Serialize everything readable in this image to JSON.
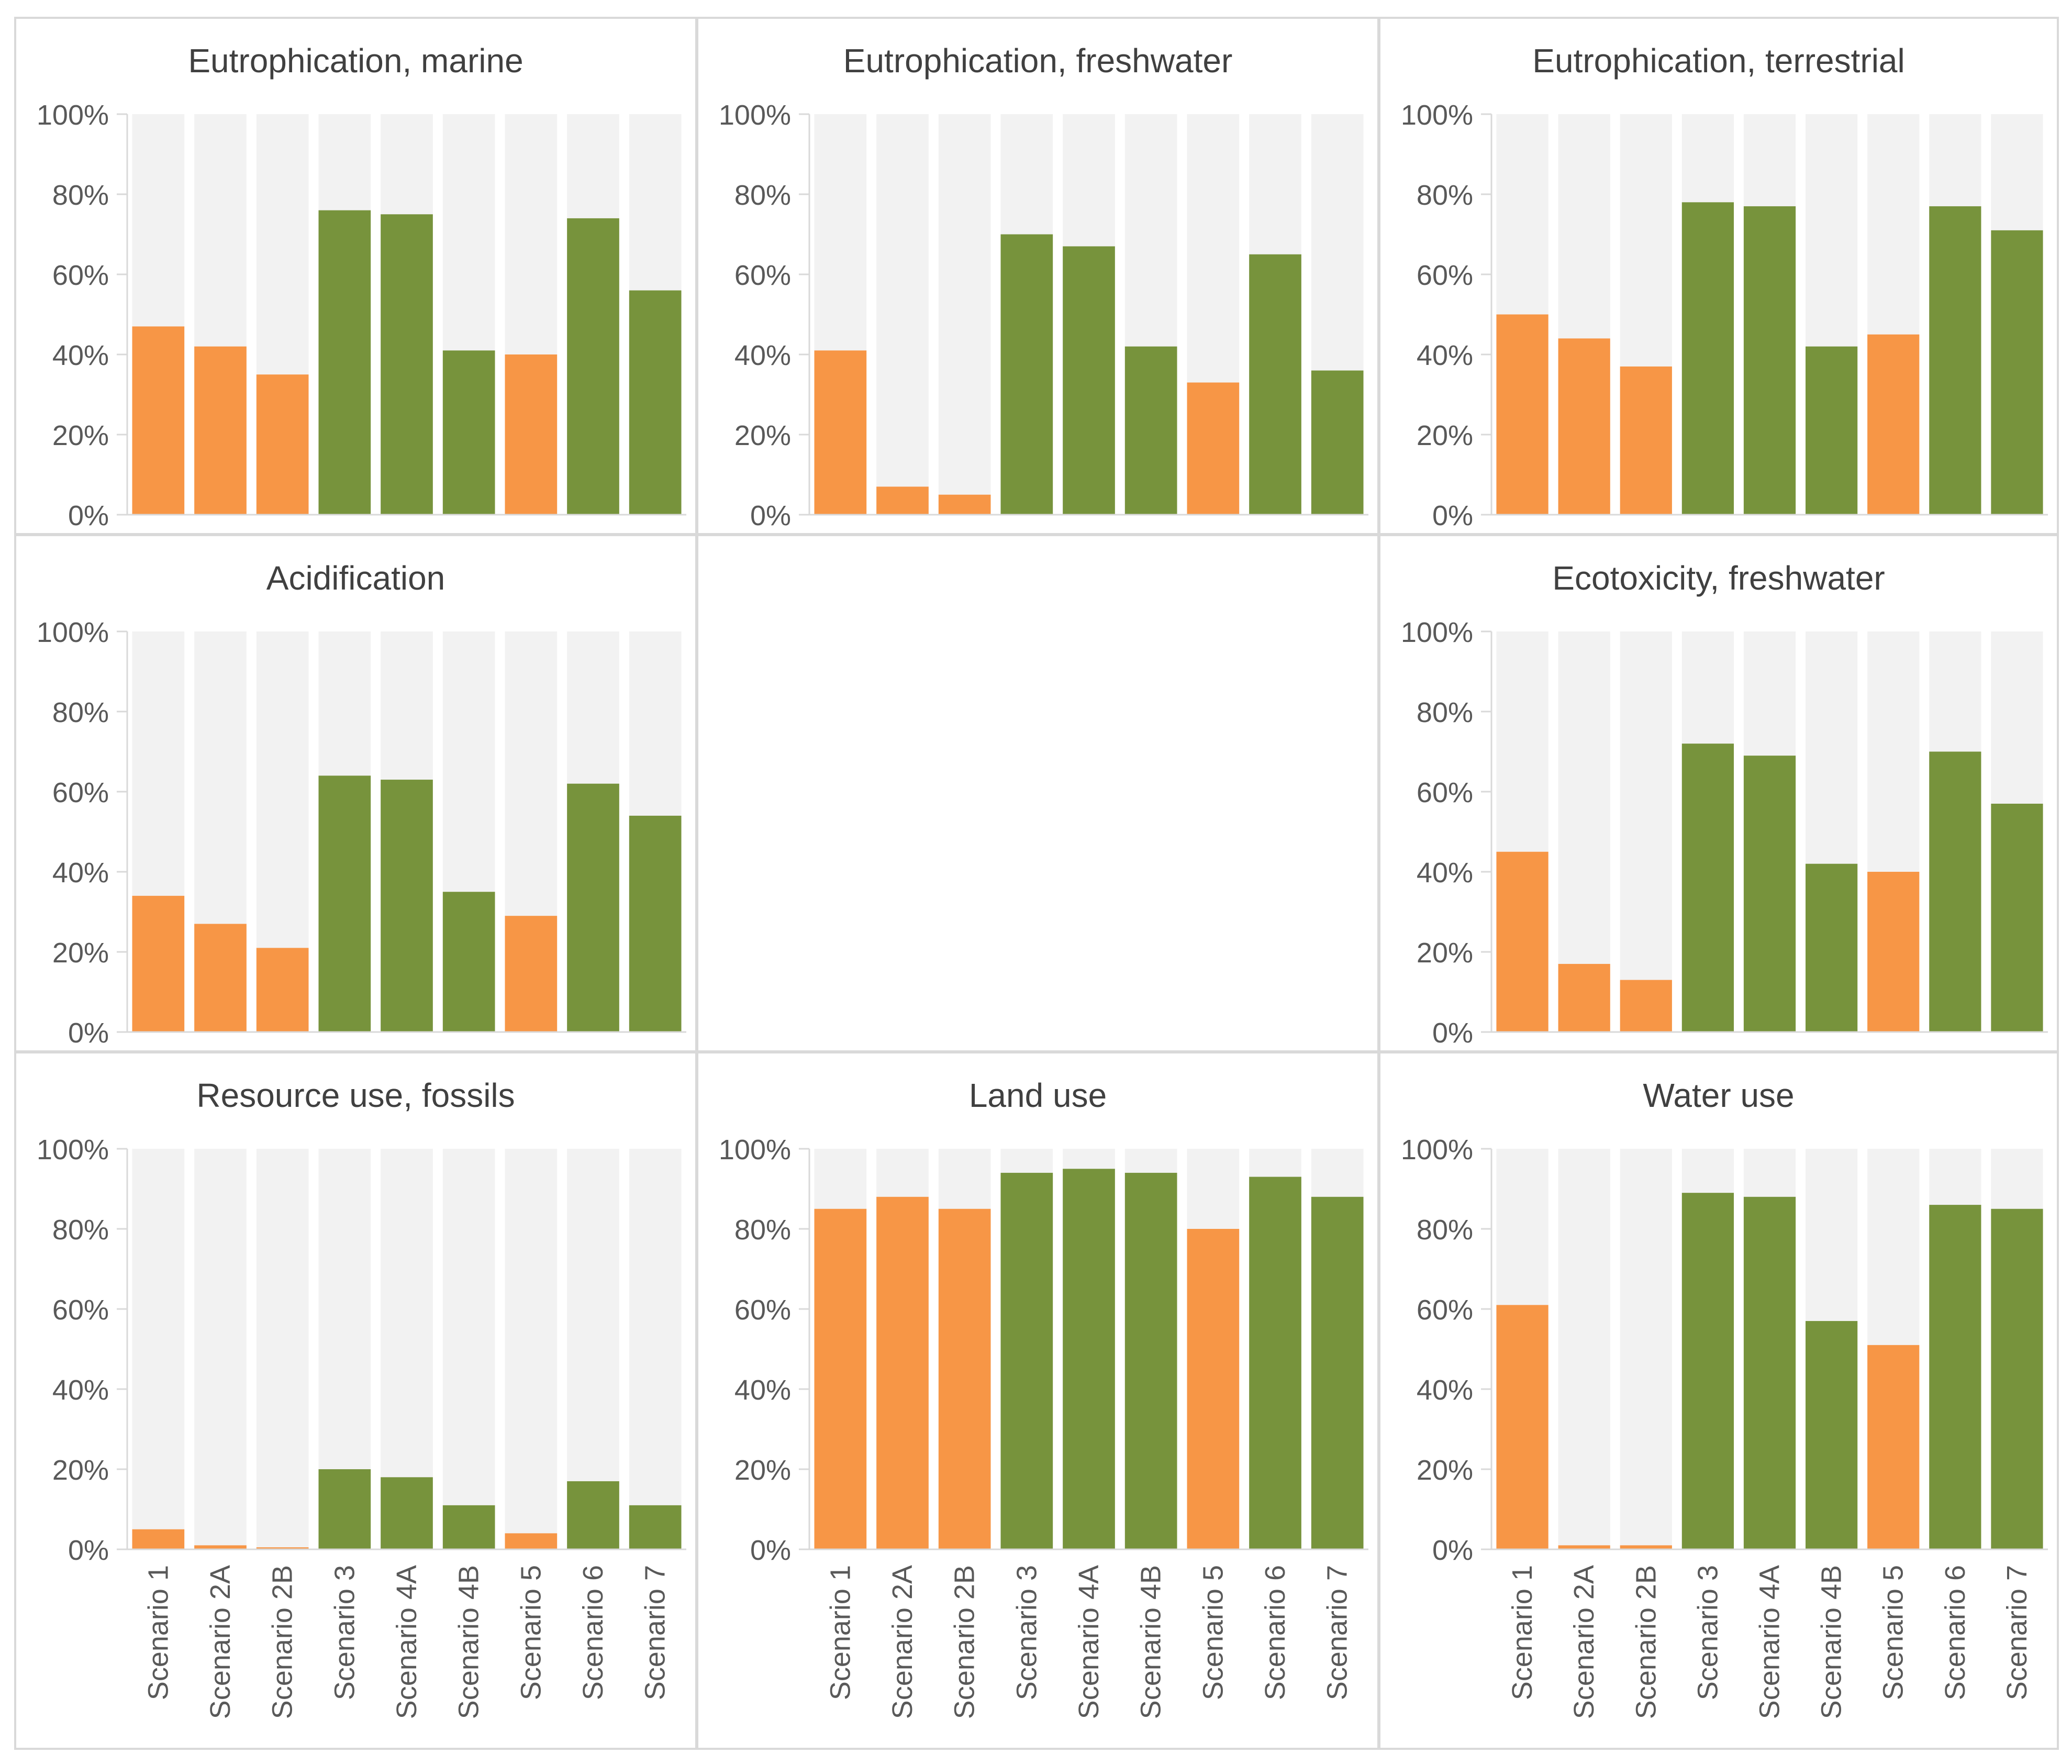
{
  "figure": {
    "colors": {
      "background_bar": "#f2f2f2",
      "orange": "#f79646",
      "green": "#77933c",
      "text": "#595959",
      "title": "#404040",
      "border": "#d9d9d9",
      "axis": "#d9d9d9"
    },
    "y_tick_labels": [
      "0%",
      "20%",
      "40%",
      "60%",
      "80%",
      "100%"
    ]
  },
  "chart_data": [
    {
      "type": "bar",
      "title": "Eutrophication, marine",
      "categories": [
        "Scenario 1",
        "Scenario 2A",
        "Scenario 2B",
        "Scenario 3",
        "Scenario 4A",
        "Scenario 4B",
        "Scenario 5",
        "Scenario 6",
        "Scenario 7"
      ],
      "values": [
        47,
        42,
        35,
        76,
        75,
        41,
        40,
        74,
        56
      ],
      "colors": [
        "orange",
        "orange",
        "orange",
        "green",
        "green",
        "green",
        "orange",
        "green",
        "green"
      ],
      "ylim": [
        0,
        100
      ],
      "show_xlabels": false
    },
    {
      "type": "bar",
      "title": "Eutrophication, freshwater",
      "categories": [
        "Scenario 1",
        "Scenario 2A",
        "Scenario 2B",
        "Scenario 3",
        "Scenario 4A",
        "Scenario 4B",
        "Scenario 5",
        "Scenario 6",
        "Scenario 7"
      ],
      "values": [
        41,
        7,
        5,
        70,
        67,
        42,
        33,
        65,
        36
      ],
      "colors": [
        "orange",
        "orange",
        "orange",
        "green",
        "green",
        "green",
        "orange",
        "green",
        "green"
      ],
      "ylim": [
        0,
        100
      ],
      "show_xlabels": false
    },
    {
      "type": "bar",
      "title": "Eutrophication, terrestrial",
      "categories": [
        "Scenario 1",
        "Scenario 2A",
        "Scenario 2B",
        "Scenario 3",
        "Scenario 4A",
        "Scenario 4B",
        "Scenario 5",
        "Scenario 6",
        "Scenario 7"
      ],
      "values": [
        50,
        44,
        37,
        78,
        77,
        42,
        45,
        77,
        71
      ],
      "colors": [
        "orange",
        "orange",
        "orange",
        "green",
        "green",
        "green",
        "orange",
        "green",
        "green"
      ],
      "ylim": [
        0,
        100
      ],
      "show_xlabels": false
    },
    {
      "type": "bar",
      "title": "Acidification",
      "categories": [
        "Scenario 1",
        "Scenario 2A",
        "Scenario 2B",
        "Scenario 3",
        "Scenario 4A",
        "Scenario 4B",
        "Scenario 5",
        "Scenario 6",
        "Scenario 7"
      ],
      "values": [
        34,
        27,
        21,
        64,
        63,
        35,
        29,
        62,
        54
      ],
      "colors": [
        "orange",
        "orange",
        "orange",
        "green",
        "green",
        "green",
        "orange",
        "green",
        "green"
      ],
      "ylim": [
        0,
        100
      ],
      "show_xlabels": false
    },
    {
      "type": "bar",
      "title": "Ecotoxicity, freshwater",
      "categories": [
        "Scenario 1",
        "Scenario 2A",
        "Scenario 2B",
        "Scenario 3",
        "Scenario 4A",
        "Scenario 4B",
        "Scenario 5",
        "Scenario 6",
        "Scenario 7"
      ],
      "values": [
        45,
        17,
        13,
        72,
        69,
        42,
        40,
        70,
        57
      ],
      "colors": [
        "orange",
        "orange",
        "orange",
        "green",
        "green",
        "green",
        "orange",
        "green",
        "green"
      ],
      "ylim": [
        0,
        100
      ],
      "show_xlabels": false
    },
    {
      "type": "bar",
      "title": "Resource use, fossils",
      "categories": [
        "Scenario 1",
        "Scenario 2A",
        "Scenario 2B",
        "Scenario 3",
        "Scenario 4A",
        "Scenario 4B",
        "Scenario 5",
        "Scenario 6",
        "Scenario 7"
      ],
      "values": [
        5,
        1,
        0.5,
        20,
        18,
        11,
        4,
        17,
        11
      ],
      "colors": [
        "orange",
        "orange",
        "orange",
        "green",
        "green",
        "green",
        "orange",
        "green",
        "green"
      ],
      "ylim": [
        0,
        100
      ],
      "show_xlabels": true
    },
    {
      "type": "bar",
      "title": "Land use",
      "categories": [
        "Scenario 1",
        "Scenario 2A",
        "Scenario 2B",
        "Scenario 3",
        "Scenario 4A",
        "Scenario 4B",
        "Scenario 5",
        "Scenario 6",
        "Scenario 7"
      ],
      "values": [
        85,
        88,
        85,
        94,
        95,
        94,
        80,
        93,
        88
      ],
      "colors": [
        "orange",
        "orange",
        "orange",
        "green",
        "green",
        "green",
        "orange",
        "green",
        "green"
      ],
      "ylim": [
        0,
        100
      ],
      "show_xlabels": true
    },
    {
      "type": "bar",
      "title": "Water use",
      "categories": [
        "Scenario 1",
        "Scenario 2A",
        "Scenario 2B",
        "Scenario 3",
        "Scenario 4A",
        "Scenario 4B",
        "Scenario 5",
        "Scenario 6",
        "Scenario 7"
      ],
      "values": [
        61,
        1,
        1,
        89,
        88,
        57,
        51,
        86,
        85
      ],
      "colors": [
        "orange",
        "orange",
        "orange",
        "green",
        "green",
        "green",
        "orange",
        "green",
        "green"
      ],
      "ylim": [
        0,
        100
      ],
      "show_xlabels": true
    }
  ]
}
